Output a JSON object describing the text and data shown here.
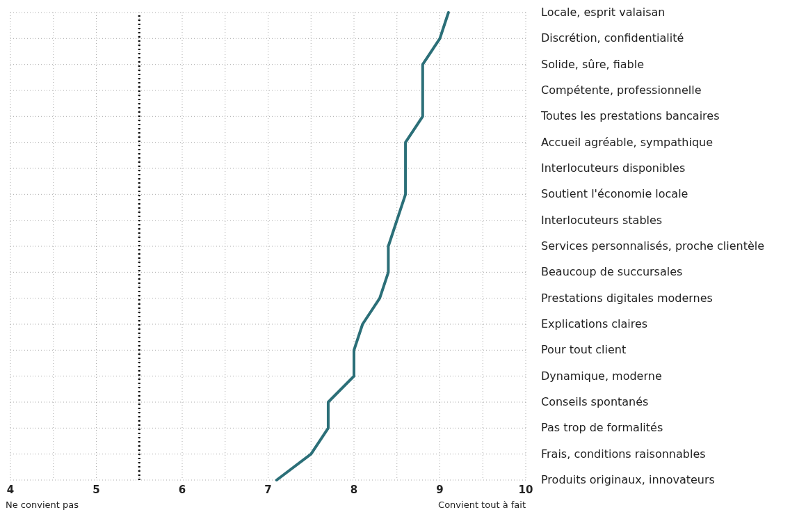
{
  "chart_data": {
    "type": "line",
    "orientation": "horizontal",
    "categories": [
      "Locale, esprit valaisan",
      "Discrétion, confidentialité",
      "Solide, sûre, fiable",
      "Compétente, professionnelle",
      "Toutes les prestations bancaires",
      "Accueil agréable, sympathique",
      "Interlocuteurs disponibles",
      "Soutient l'économie locale",
      "Interlocuteurs stables",
      "Services personnalisés, proche clientèle",
      "Beaucoup de succursales",
      "Prestations digitales modernes",
      "Explications claires",
      "Pour tout client",
      "Dynamique, moderne",
      "Conseils spontanés",
      "Pas trop de formalités",
      "Frais, conditions raisonnables",
      "Produits originaux, innovateurs"
    ],
    "series": [
      {
        "color": "#2b6f78",
        "values": [
          9.1,
          9.0,
          8.8,
          8.8,
          8.8,
          8.6,
          8.6,
          8.6,
          8.5,
          8.4,
          8.4,
          8.3,
          8.1,
          8.0,
          8.0,
          7.7,
          7.7,
          7.5,
          7.1
        ]
      }
    ],
    "xlim": [
      4,
      10
    ],
    "xticks": [
      4,
      {
        "value": 4.5,
        "label": null
      },
      5,
      {
        "value": 5.5,
        "label": null
      },
      6,
      {
        "value": 6.5,
        "label": null
      },
      7,
      {
        "value": 7.5,
        "label": null
      },
      8,
      {
        "value": 8.5,
        "label": null
      },
      9,
      {
        "value": 9.5,
        "label": null
      },
      10
    ],
    "ref_lines": [
      {
        "axis": "x",
        "value": 5.5,
        "color": "#000000",
        "line_style": "dotted"
      }
    ],
    "annotations": [
      "Ne convient pas",
      "Convient tout à fait"
    ],
    "grid": true,
    "marker": "none",
    "line_style": "solid"
  }
}
